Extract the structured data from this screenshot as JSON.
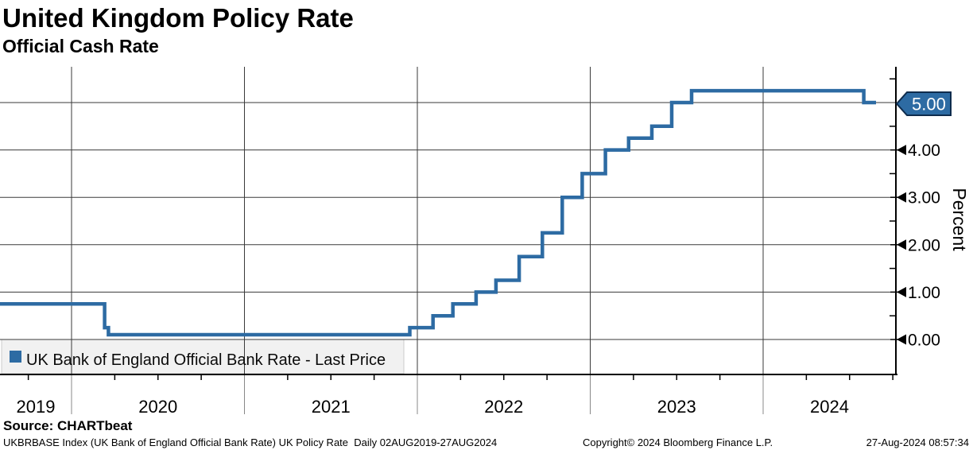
{
  "header": {
    "title": "United Kingdom Policy Rate",
    "subtitle": "Official Cash Rate"
  },
  "legend": {
    "label": "UK Bank of England Official Bank Rate - Last Price"
  },
  "last_price_tag": "5.00",
  "axes": {
    "y_label": "Percent",
    "y_ticks": [
      "0.00",
      "1.00",
      "2.00",
      "3.00",
      "4.00"
    ],
    "x_ticks": [
      "2019",
      "2020",
      "2021",
      "2022",
      "2023",
      "2024"
    ]
  },
  "footer": {
    "source": "Source: CHARTbeat",
    "description": "UKBRBASE Index (UK Bank of England Official Bank Rate) UK Policy Rate  Daily 02AUG2019-27AUG2024",
    "copyright": "Copyright© 2024 Bloomberg Finance L.P.",
    "timestamp": "27-Aug-2024 08:57:34"
  },
  "colors": {
    "line": "#2d6ba3",
    "tag_fill": "#2d6ba3",
    "tag_border": "#0e2c4d",
    "tag_text": "#ffffff",
    "grid": "#3a3a3a",
    "axis": "#000000",
    "legend_bg": "#f1f1f1",
    "legend_border": "#cccccc"
  },
  "chart_data": {
    "type": "line",
    "style": "step-after",
    "title": "United Kingdom Policy Rate",
    "subtitle": "Official Cash Rate",
    "series_name": "UK Bank of England Official Bank Rate - Last Price",
    "xlabel": "",
    "ylabel": "Percent",
    "x_range": [
      "2019-08-02",
      "2024-08-27"
    ],
    "y_major_tick_values": [
      0,
      1,
      2,
      3,
      4,
      5
    ],
    "y_minor_tick_step": 0.5,
    "x_major_gridline_years": [
      2020,
      2021,
      2022,
      2023,
      2024
    ],
    "x_minor_tick_interval": "quarter",
    "legend_position": "bottom-left-inside",
    "last_price": 5.0,
    "events": [
      {
        "date": "2019-08-02",
        "rate": 0.75
      },
      {
        "date": "2020-03-11",
        "rate": 0.25
      },
      {
        "date": "2020-03-19",
        "rate": 0.1
      },
      {
        "date": "2021-12-16",
        "rate": 0.25
      },
      {
        "date": "2022-02-03",
        "rate": 0.5
      },
      {
        "date": "2022-03-17",
        "rate": 0.75
      },
      {
        "date": "2022-05-05",
        "rate": 1.0
      },
      {
        "date": "2022-06-16",
        "rate": 1.25
      },
      {
        "date": "2022-08-04",
        "rate": 1.75
      },
      {
        "date": "2022-09-22",
        "rate": 2.25
      },
      {
        "date": "2022-11-03",
        "rate": 3.0
      },
      {
        "date": "2022-12-15",
        "rate": 3.5
      },
      {
        "date": "2023-02-02",
        "rate": 4.0
      },
      {
        "date": "2023-03-23",
        "rate": 4.25
      },
      {
        "date": "2023-05-11",
        "rate": 4.5
      },
      {
        "date": "2023-06-22",
        "rate": 5.0
      },
      {
        "date": "2023-08-03",
        "rate": 5.25
      },
      {
        "date": "2024-08-01",
        "rate": 5.0
      },
      {
        "date": "2024-08-27",
        "rate": 5.0
      }
    ]
  }
}
